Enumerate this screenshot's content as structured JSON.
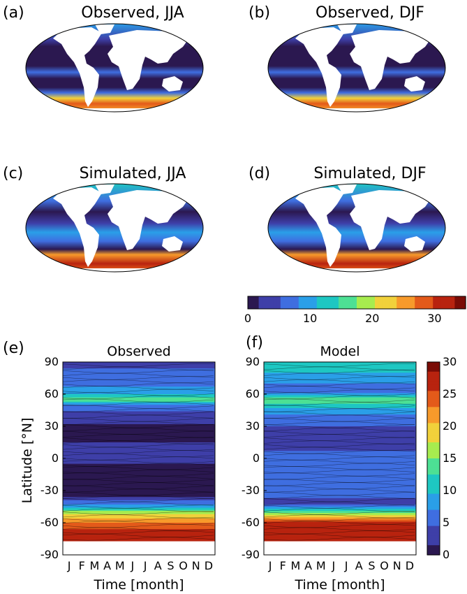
{
  "panels": {
    "a": {
      "letter": "(a)",
      "title": "Observed, JJA"
    },
    "b": {
      "letter": "(b)",
      "title": "Observed, DJF"
    },
    "c": {
      "letter": "(c)",
      "title": "Simulated, JJA"
    },
    "d": {
      "letter": "(d)",
      "title": "Simulated, DJF"
    },
    "e": {
      "letter": "(e)",
      "title": "Observed"
    },
    "f": {
      "letter": "(f)",
      "title": "Model"
    }
  },
  "colors": {
    "ocean_low": "#2b1a4a",
    "land": "#ffffff",
    "colormap": [
      "#2b1850",
      "#3e3fa8",
      "#3f6ee0",
      "#2a9fe8",
      "#1ec7c2",
      "#4de094",
      "#a7ec4f",
      "#f1d13b",
      "#f79a2b",
      "#e35a1a",
      "#b8230f",
      "#7a0c06"
    ]
  },
  "chart_data": [
    {
      "type": "heatmap",
      "title": "Observed",
      "xlabel": "Time [month]",
      "ylabel": "Latitude [°N]",
      "x_ticks": [
        "J",
        "F",
        "M",
        "A",
        "M",
        "J",
        "J",
        "A",
        "S",
        "O",
        "N",
        "D"
      ],
      "y_ticks": [
        90,
        60,
        30,
        0,
        -30,
        -60,
        -90
      ],
      "ylim": [
        -90,
        90
      ],
      "clim": [
        0,
        30
      ],
      "latitude_profile": [
        {
          "lat": 85,
          "value": 4
        },
        {
          "lat": 70,
          "value": 6
        },
        {
          "lat": 60,
          "value": 9
        },
        {
          "lat": 55,
          "value": 15
        },
        {
          "lat": 50,
          "value": 7
        },
        {
          "lat": 40,
          "value": 2
        },
        {
          "lat": 20,
          "value": 0.5
        },
        {
          "lat": 5,
          "value": 3
        },
        {
          "lat": -10,
          "value": 0.5
        },
        {
          "lat": -35,
          "value": 1
        },
        {
          "lat": -45,
          "value": 8
        },
        {
          "lat": -50,
          "value": 16
        },
        {
          "lat": -60,
          "value": 23
        },
        {
          "lat": -70,
          "value": 28
        },
        {
          "lat": -77,
          "value": 26
        }
      ]
    },
    {
      "type": "heatmap",
      "title": "Model",
      "xlabel": "Time [month]",
      "ylabel": "",
      "x_ticks": [
        "J",
        "F",
        "M",
        "A",
        "M",
        "J",
        "J",
        "A",
        "S",
        "O",
        "N",
        "D"
      ],
      "y_ticks": [
        90,
        60,
        30,
        0,
        -30,
        -60,
        -90
      ],
      "ylim": [
        -90,
        90
      ],
      "clim": [
        0,
        30
      ],
      "latitude_profile": [
        {
          "lat": 85,
          "value": 11
        },
        {
          "lat": 75,
          "value": 8
        },
        {
          "lat": 62,
          "value": 5
        },
        {
          "lat": 55,
          "value": 15
        },
        {
          "lat": 45,
          "value": 8
        },
        {
          "lat": 30,
          "value": 4
        },
        {
          "lat": 15,
          "value": 3
        },
        {
          "lat": 0,
          "value": 5
        },
        {
          "lat": -20,
          "value": 6
        },
        {
          "lat": -35,
          "value": 5
        },
        {
          "lat": -42,
          "value": 2
        },
        {
          "lat": -50,
          "value": 14
        },
        {
          "lat": -60,
          "value": 27
        },
        {
          "lat": -70,
          "value": 28
        },
        {
          "lat": -77,
          "value": 26
        }
      ]
    }
  ],
  "colorbars": {
    "horizontal": {
      "min": 0,
      "max": 35,
      "ticks": [
        "0",
        "10",
        "20",
        "30"
      ]
    },
    "vertical": {
      "min": 0,
      "max": 30,
      "ticks": [
        "30",
        "25",
        "20",
        "15",
        "10",
        "5",
        "0"
      ]
    }
  }
}
